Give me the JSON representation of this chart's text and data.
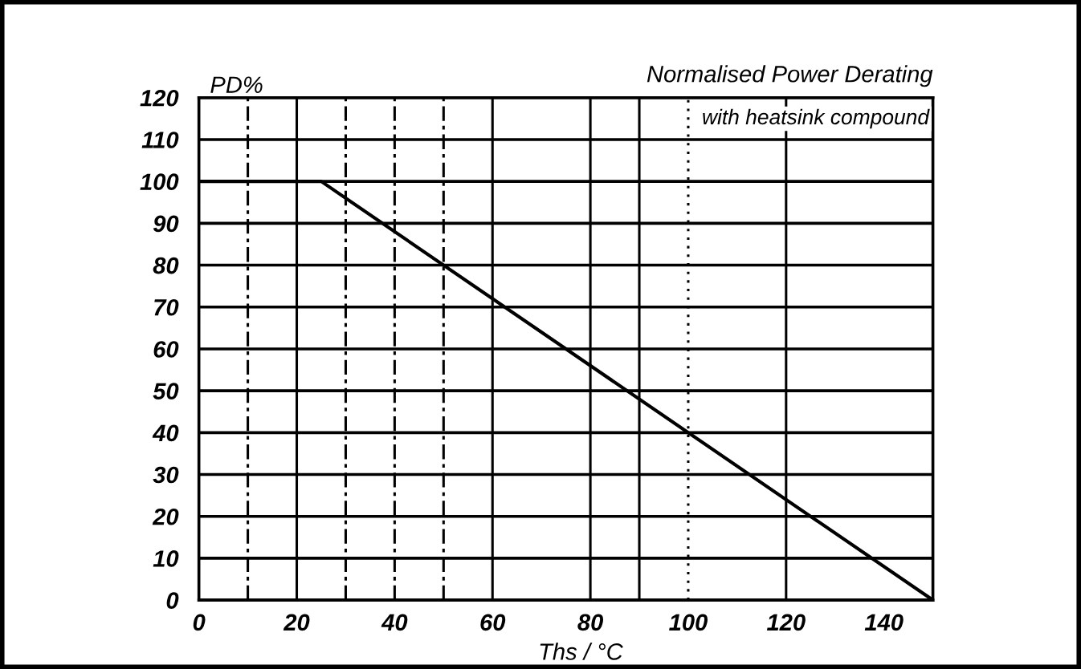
{
  "chart_data": {
    "type": "line",
    "title": "Normalised Power Derating",
    "subtitle": "with heatsink compound",
    "xlabel": "Ths / °C",
    "ylabel": "PD%",
    "x": [
      0,
      25,
      150
    ],
    "series": [
      {
        "color": "#000000",
        "values": [
          100,
          100,
          0
        ]
      }
    ],
    "xlim": [
      0,
      150
    ],
    "ylim": [
      0,
      120
    ],
    "xticks": [
      0,
      20,
      40,
      60,
      80,
      100,
      120,
      140
    ],
    "yticks": [
      0,
      10,
      20,
      30,
      40,
      50,
      60,
      70,
      80,
      90,
      100,
      110,
      120
    ],
    "grid": "y",
    "line_style": "solid",
    "ref_lines": [
      {
        "axis": "x",
        "value": 10,
        "line_style": "dashed",
        "color": "#000000"
      },
      {
        "axis": "x",
        "value": 20,
        "line_style": "solid",
        "color": "#000000"
      },
      {
        "axis": "x",
        "value": 30,
        "line_style": "dashed",
        "color": "#000000"
      },
      {
        "axis": "x",
        "value": 40,
        "line_style": "dashed",
        "color": "#000000"
      },
      {
        "axis": "x",
        "value": 50,
        "line_style": "dashed",
        "color": "#000000"
      },
      {
        "axis": "x",
        "value": 60,
        "line_style": "solid",
        "color": "#000000"
      },
      {
        "axis": "x",
        "value": 80,
        "line_style": "solid",
        "color": "#000000"
      },
      {
        "axis": "x",
        "value": 90,
        "line_style": "solid",
        "color": "#000000"
      },
      {
        "axis": "x",
        "value": 100,
        "line_style": "dotted",
        "color": "#000000"
      },
      {
        "axis": "x",
        "value": 120,
        "line_style": "solid",
        "color": "#000000"
      }
    ]
  }
}
